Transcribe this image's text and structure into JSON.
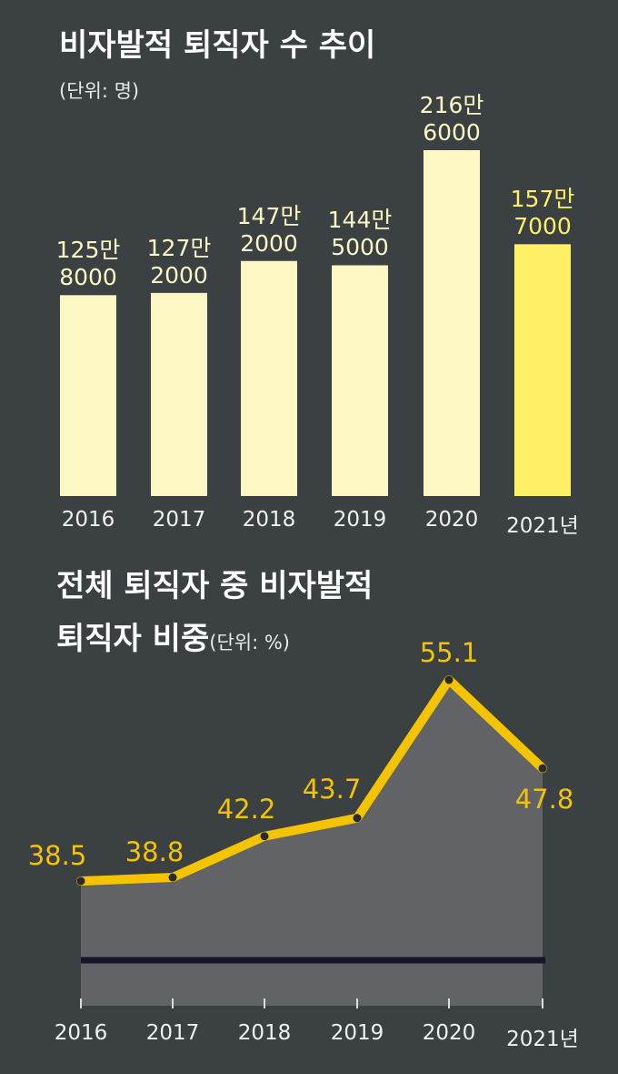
{
  "chart_data": [
    {
      "type": "bar",
      "title": "비자발적 퇴직자 수 추이",
      "subtitle": "(단위: 명)",
      "categories": [
        "2016",
        "2017",
        "2018",
        "2019",
        "2020",
        "2021년"
      ],
      "values": [
        1258000,
        1272000,
        1472000,
        1445000,
        2166000,
        1577000
      ],
      "value_labels": [
        "125만 8000",
        "127만 2000",
        "147만 2000",
        "144만 5000",
        "216만 6000",
        "157만 7000"
      ],
      "colors": [
        "#fdf7c3",
        "#fdf7c3",
        "#fdf7c3",
        "#fdf7c3",
        "#fdf7c3",
        "#fff066"
      ]
    },
    {
      "type": "line",
      "title": "전체 퇴직자 중 비자발적 퇴직자 비중",
      "subtitle": "(단위: %)",
      "categories": [
        "2016",
        "2017",
        "2018",
        "2019",
        "2020",
        "2021년"
      ],
      "values": [
        38.5,
        38.8,
        42.2,
        43.7,
        55.1,
        47.8
      ],
      "color": "#f5c400"
    }
  ]
}
